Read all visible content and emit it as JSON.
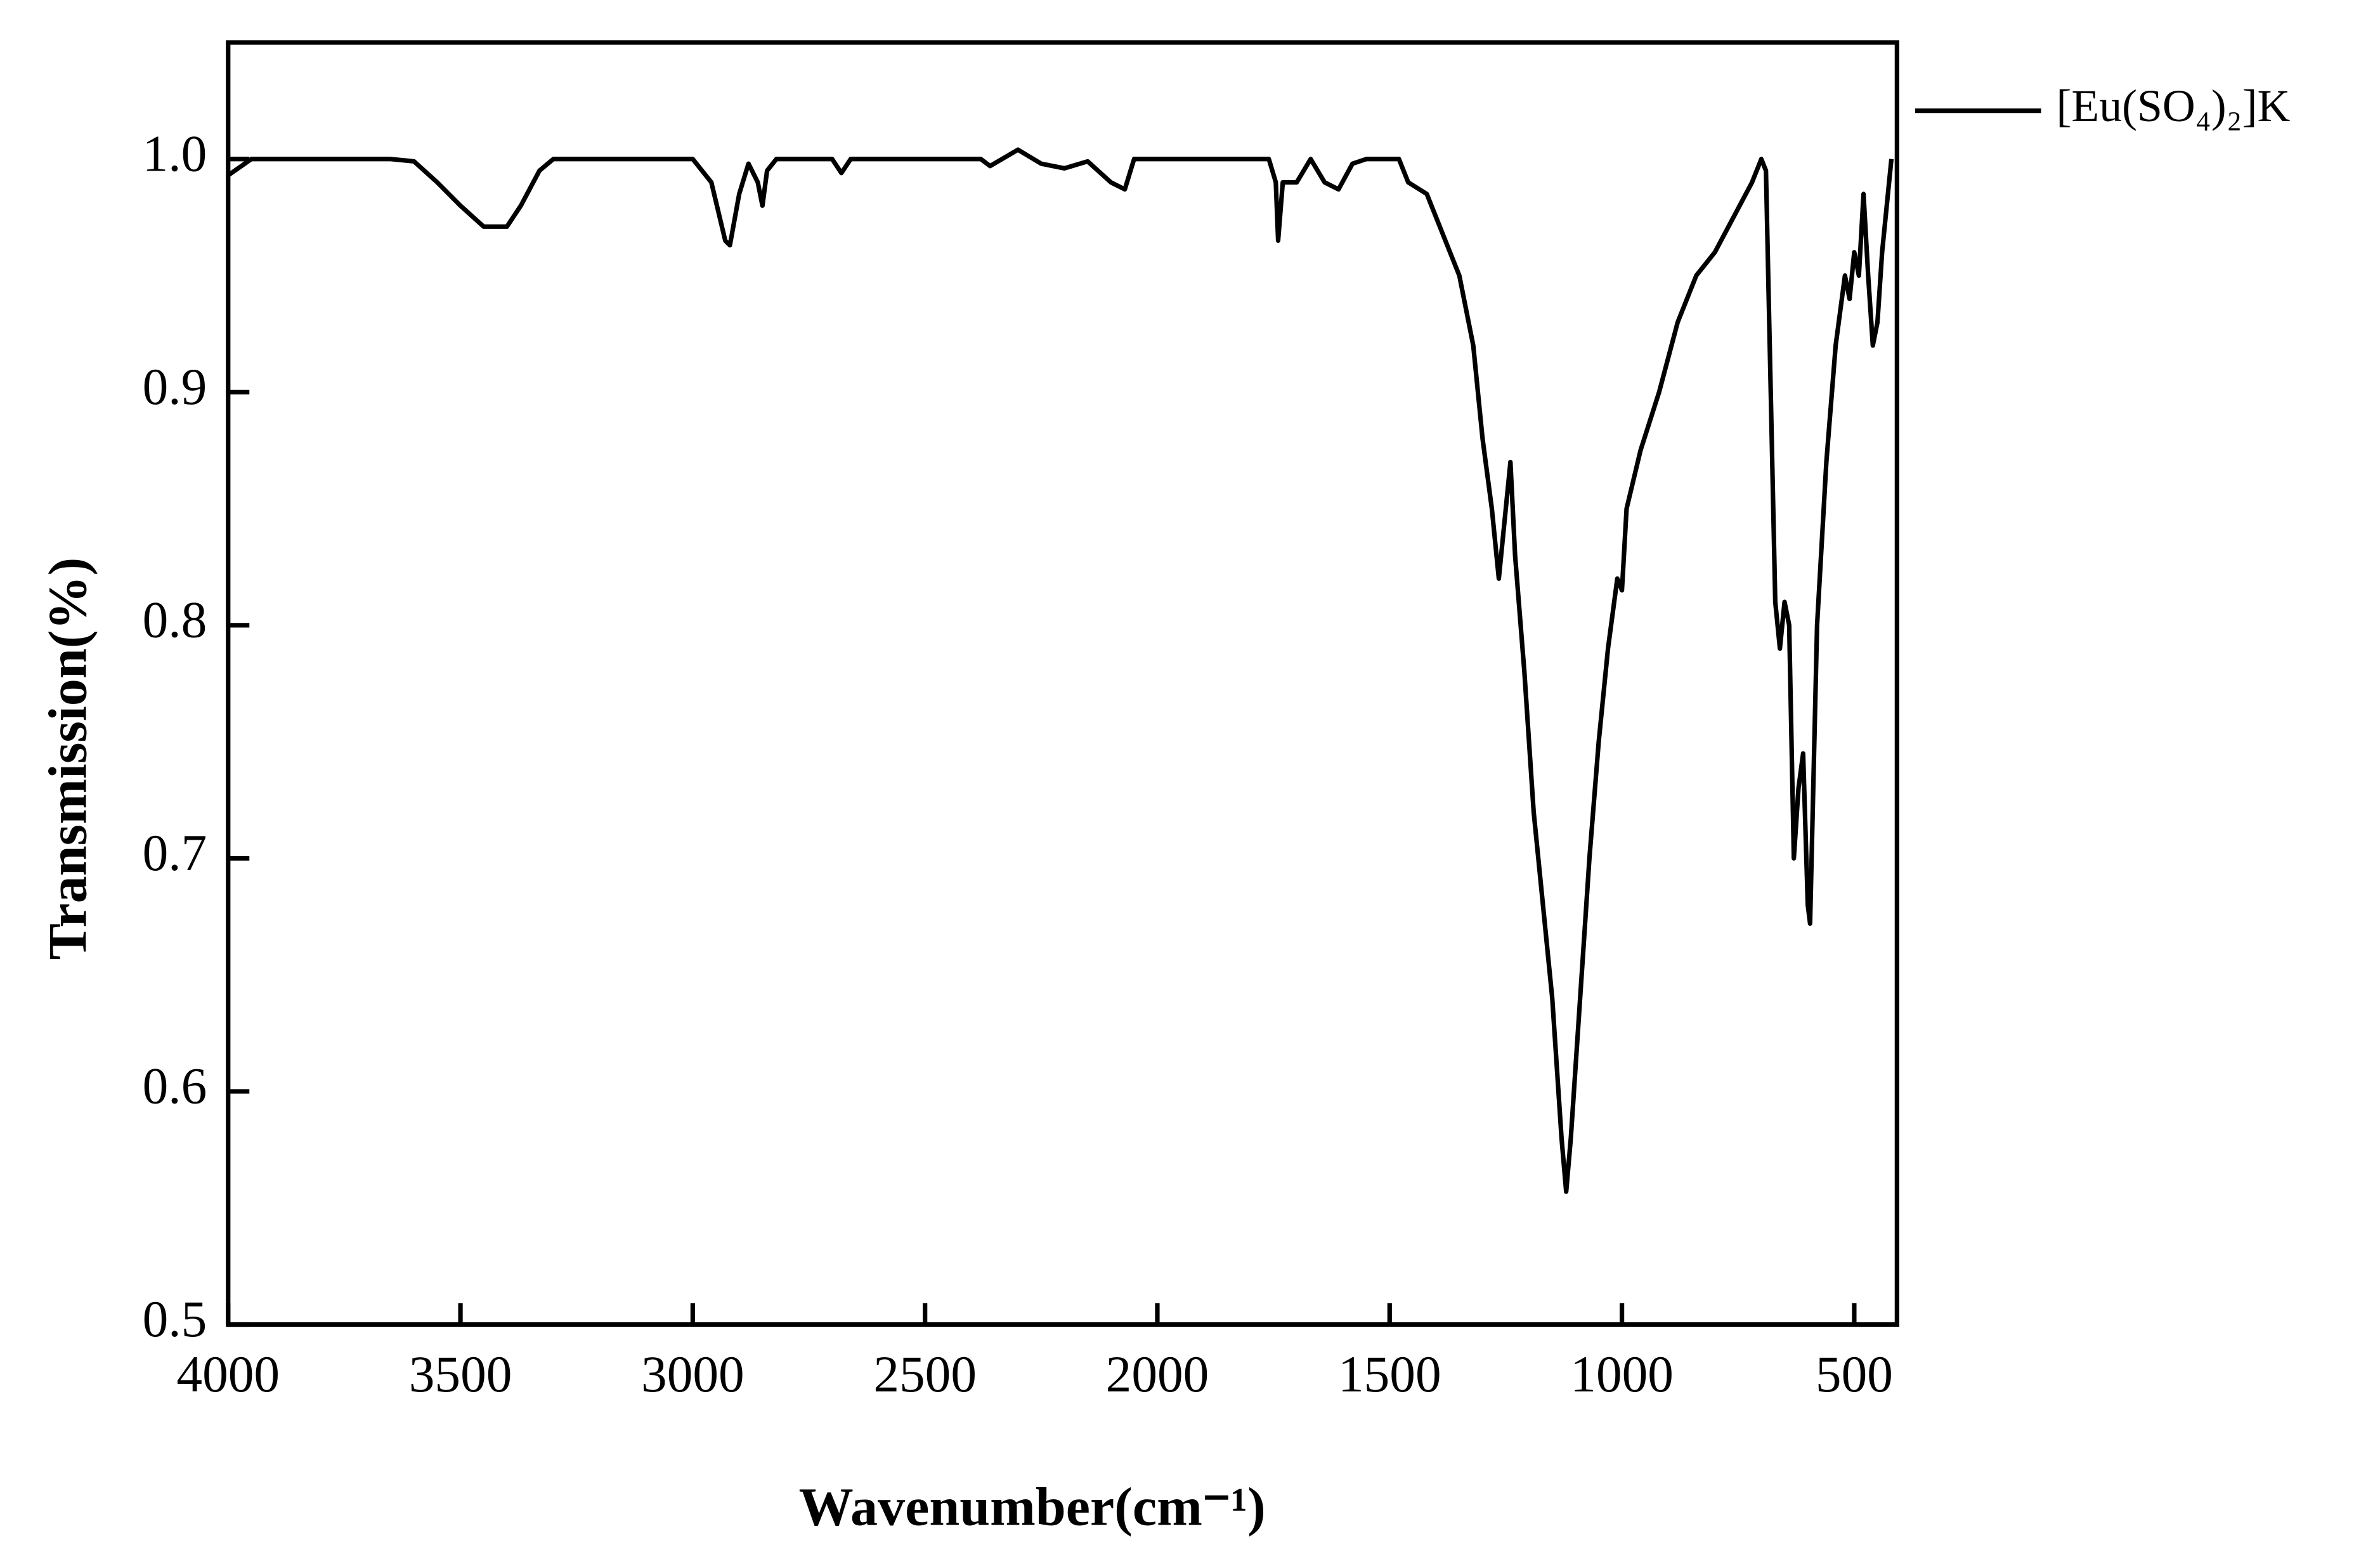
{
  "chart_data": {
    "type": "line",
    "x_label": "Wavenumber(cm⁻¹)",
    "y_label": "Transmission(%)",
    "xlim": [
      4000,
      408
    ],
    "ylim": [
      0.5,
      1.05
    ],
    "xticks": [
      4000,
      3500,
      3000,
      2500,
      2000,
      1500,
      1000,
      500
    ],
    "yticks": [
      0.5,
      0.6,
      0.7,
      0.8,
      0.9,
      {
        "value": 1,
        "label": "1.0"
      }
    ],
    "legend": "top-right-outside",
    "x": [
      4000,
      3950,
      3800,
      3650,
      3600,
      3550,
      3500,
      3450,
      3400,
      3370,
      3330,
      3300,
      3000,
      2960,
      2930,
      2920,
      2900,
      2880,
      2860,
      2850,
      2840,
      2820,
      2700,
      2680,
      2660,
      2380,
      2360,
      2300,
      2250,
      2200,
      2150,
      2100,
      2070,
      2050,
      1760,
      1745,
      1740,
      1730,
      1700,
      1670,
      1640,
      1610,
      1580,
      1550,
      1480,
      1460,
      1420,
      1380,
      1350,
      1320,
      1300,
      1280,
      1265,
      1250,
      1240,
      1230,
      1210,
      1190,
      1170,
      1150,
      1130,
      1120,
      1110,
      1090,
      1070,
      1050,
      1030,
      1010,
      1000,
      990,
      960,
      920,
      880,
      840,
      800,
      760,
      720,
      700,
      690,
      670,
      660,
      650,
      640,
      630,
      620,
      610,
      600,
      595,
      580,
      560,
      540,
      520,
      510,
      500,
      490,
      480,
      470,
      460,
      450,
      440,
      430,
      420
    ],
    "series": [
      {
        "name": "[Eu(SO₄)₂]K",
        "color": "#000000",
        "values": [
          0.993,
          1.0,
          1.0,
          1.0,
          0.999,
          0.99,
          0.98,
          0.971,
          0.971,
          0.98,
          0.995,
          1.0,
          1.0,
          0.99,
          0.965,
          0.963,
          0.985,
          0.998,
          0.99,
          0.98,
          0.995,
          1.0,
          1.0,
          0.994,
          1.0,
          1.0,
          0.997,
          1.004,
          0.998,
          0.996,
          0.999,
          0.99,
          0.987,
          1.0,
          1.0,
          0.99,
          0.965,
          0.99,
          0.99,
          1.0,
          0.99,
          0.987,
          0.998,
          1.0,
          1.0,
          0.99,
          0.985,
          0.965,
          0.95,
          0.92,
          0.88,
          0.85,
          0.82,
          0.85,
          0.87,
          0.83,
          0.78,
          0.72,
          0.68,
          0.64,
          0.58,
          0.557,
          0.58,
          0.64,
          0.7,
          0.75,
          0.79,
          0.82,
          0.815,
          0.85,
          0.875,
          0.9,
          0.93,
          0.95,
          0.96,
          0.975,
          0.99,
          1.0,
          0.995,
          0.81,
          0.79,
          0.81,
          0.8,
          0.7,
          0.73,
          0.745,
          0.68,
          0.672,
          0.8,
          0.87,
          0.92,
          0.95,
          0.94,
          0.96,
          0.95,
          0.985,
          0.95,
          0.92,
          0.93,
          0.96,
          0.98,
          1.0
        ]
      }
    ]
  }
}
